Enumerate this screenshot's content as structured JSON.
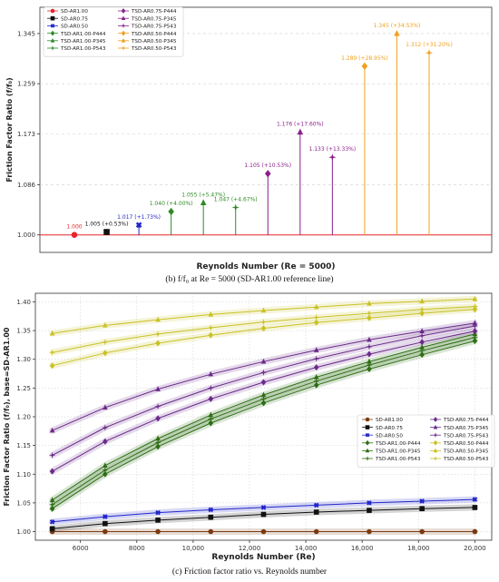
{
  "captions": {
    "top": "(b) f/f₀ at Re = 5000 (SD-AR1.00 reference line)",
    "bottom": "(c) Friction factor ratio vs. Reynolds number"
  },
  "chart_data": [
    {
      "type": "stem",
      "xlabel": "Reynolds Number (Re = 5000)",
      "ylabel": "Friction Factor Ratio (f/f₀)",
      "ylim": [
        0.97,
        1.39
      ],
      "yticks": [
        "1.000",
        "1.086",
        "1.173",
        "1.259",
        "1.345"
      ],
      "reference_line": 1.0,
      "grid": "y-dashed",
      "legend_position": "top-left",
      "series": [
        {
          "name": "SD-AR1.00",
          "value": 1.0,
          "label": "1.000",
          "color": "#e8262b",
          "marker": "circle"
        },
        {
          "name": "SD-AR0.75",
          "value": 1.005,
          "label": "1.005 (+0.53%)",
          "color": "#111111",
          "marker": "square"
        },
        {
          "name": "SD-AR0.50",
          "value": 1.017,
          "label": "1.017 (+1.73%)",
          "color": "#2226c9",
          "marker": "x"
        },
        {
          "name": "TSD-AR1.00-P444",
          "value": 1.04,
          "label": "1.040 (+4.00%)",
          "color": "#2e8a24",
          "marker": "diamond"
        },
        {
          "name": "TSD-AR1.00-P345",
          "value": 1.055,
          "label": "1.055 (+5.47%)",
          "color": "#2e8a24",
          "marker": "triangle"
        },
        {
          "name": "TSD-AR1.00-P543",
          "value": 1.047,
          "label": "1.047 (+4.67%)",
          "color": "#2e8a24",
          "marker": "star"
        },
        {
          "name": "TSD-AR0.75-P444",
          "value": 1.105,
          "label": "1.105 (+10.53%)",
          "color": "#8a1f8a",
          "marker": "diamond"
        },
        {
          "name": "TSD-AR0.75-P345",
          "value": 1.176,
          "label": "1.176 (+17.60%)",
          "color": "#8a1f8a",
          "marker": "triangle"
        },
        {
          "name": "TSD-AR0.75-P543",
          "value": 1.133,
          "label": "1.133 (+13.33%)",
          "color": "#8a1f8a",
          "marker": "star"
        },
        {
          "name": "TSD-AR0.50-P444",
          "value": 1.289,
          "label": "1.289 (+28.95%)",
          "color": "#f0a020",
          "marker": "diamond"
        },
        {
          "name": "TSD-AR0.50-P345",
          "value": 1.345,
          "label": "1.345 (+34.53%)",
          "color": "#f0a020",
          "marker": "triangle"
        },
        {
          "name": "TSD-AR0.50-P543",
          "value": 1.312,
          "label": "1.312 (+31.20%)",
          "color": "#f0a020",
          "marker": "star"
        }
      ]
    },
    {
      "type": "line",
      "xlabel": "Reynolds Number (Re)",
      "ylabel": "Friction Factor Ratio (f/f₀), base=SD-AR1.00",
      "xlim": [
        4400,
        20600
      ],
      "ylim": [
        0.985,
        1.415
      ],
      "xticks": [
        "6000",
        "8000",
        "10,000",
        "12,000",
        "14,000",
        "16,000",
        "18,000",
        "20,000"
      ],
      "yticks": [
        "1.00",
        "1.05",
        "1.10",
        "1.15",
        "1.20",
        "1.25",
        "1.30",
        "1.35",
        "1.40"
      ],
      "grid": "dotted",
      "legend_position": "center-right",
      "x": [
        5000,
        6875,
        8750,
        10625,
        12500,
        14375,
        16250,
        18125,
        20000
      ],
      "series": [
        {
          "name": "SD-AR1.00",
          "color": "#7a3b12",
          "marker": "circle",
          "values": [
            1.0,
            1.0,
            1.0,
            1.0,
            1.0,
            1.0,
            1.0,
            1.0,
            1.0
          ]
        },
        {
          "name": "SD-AR0.75",
          "color": "#111111",
          "marker": "square",
          "values": [
            1.005,
            1.014,
            1.02,
            1.025,
            1.03,
            1.034,
            1.037,
            1.04,
            1.042
          ]
        },
        {
          "name": "SD-AR0.50",
          "color": "#2226c9",
          "marker": "x",
          "values": [
            1.017,
            1.026,
            1.033,
            1.038,
            1.042,
            1.046,
            1.05,
            1.053,
            1.056
          ]
        },
        {
          "name": "TSD-AR1.00-P444",
          "color": "#2e6e14",
          "marker": "diamond",
          "values": [
            1.04,
            1.1,
            1.148,
            1.189,
            1.224,
            1.255,
            1.283,
            1.308,
            1.332
          ]
        },
        {
          "name": "TSD-AR1.00-P345",
          "color": "#2e6e14",
          "marker": "triangle",
          "values": [
            1.055,
            1.115,
            1.162,
            1.203,
            1.238,
            1.269,
            1.296,
            1.321,
            1.344
          ]
        },
        {
          "name": "TSD-AR1.00-P543",
          "color": "#2e6e14",
          "marker": "star",
          "values": [
            1.047,
            1.107,
            1.155,
            1.196,
            1.231,
            1.262,
            1.29,
            1.315,
            1.338
          ]
        },
        {
          "name": "TSD-AR0.75-P444",
          "color": "#6b2a8a",
          "marker": "diamond",
          "values": [
            1.105,
            1.157,
            1.197,
            1.231,
            1.26,
            1.286,
            1.309,
            1.33,
            1.349
          ]
        },
        {
          "name": "TSD-AR0.75-P345",
          "color": "#6b2a8a",
          "marker": "triangle",
          "values": [
            1.176,
            1.216,
            1.248,
            1.274,
            1.296,
            1.316,
            1.334,
            1.349,
            1.363
          ]
        },
        {
          "name": "TSD-AR0.75-P543",
          "color": "#6b2a8a",
          "marker": "star",
          "values": [
            1.133,
            1.181,
            1.218,
            1.25,
            1.277,
            1.301,
            1.322,
            1.341,
            1.358
          ]
        },
        {
          "name": "TSD-AR0.50-P444",
          "color": "#c9c127",
          "marker": "diamond",
          "values": [
            1.289,
            1.311,
            1.328,
            1.342,
            1.354,
            1.364,
            1.372,
            1.38,
            1.387
          ]
        },
        {
          "name": "TSD-AR0.50-P345",
          "color": "#c9c127",
          "marker": "triangle",
          "values": [
            1.345,
            1.359,
            1.369,
            1.378,
            1.385,
            1.391,
            1.397,
            1.401,
            1.405
          ]
        },
        {
          "name": "TSD-AR0.50-P543",
          "color": "#c9c127",
          "marker": "star",
          "values": [
            1.312,
            1.33,
            1.344,
            1.355,
            1.365,
            1.373,
            1.38,
            1.387,
            1.392
          ]
        }
      ]
    }
  ]
}
